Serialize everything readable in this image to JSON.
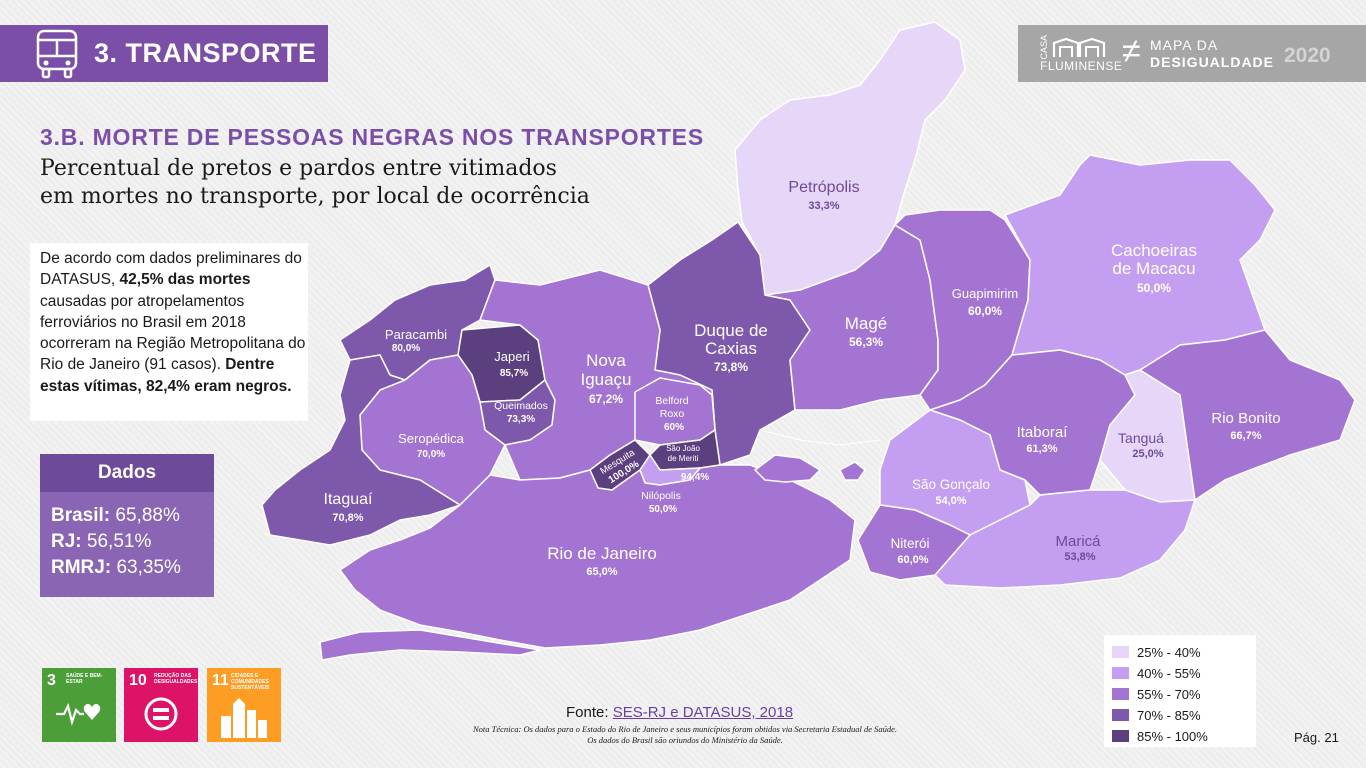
{
  "header": {
    "title": "3. TRANSPORTE",
    "icon": "bus-icon"
  },
  "brand": {
    "casa": "CASA",
    "fluminense": "FLUMINENSE",
    "symbol": "≠",
    "mapa_line1": "MAPA DA",
    "mapa_line2": "DESIGUALDADE",
    "year": "2020"
  },
  "section_title": "3.B. MORTE DE PESSOAS NEGRAS NOS TRANSPORTES",
  "subtitle_line1": "Percentual de pretos e pardos entre vitimados",
  "subtitle_line2": "em mortes no transporte, por local de ocorrência",
  "description": {
    "part1": "De acordo com dados preliminares do DATASUS, ",
    "bold1": "42,5% das mortes",
    "part2": " causadas por atropelamentos ferroviários no Brasil em 2018 ocorreram na Região Metropolitana do Rio de Janeiro (91 casos). ",
    "bold2": "Dentre estas vítimas, 82,4% eram negros."
  },
  "dados": {
    "title": "Dados",
    "rows": [
      {
        "label": "Brasil:",
        "value": "65,88%"
      },
      {
        "label": "RJ:",
        "value": "56,51%"
      },
      {
        "label": "RMRJ:",
        "value": "63,35%"
      }
    ]
  },
  "map": {
    "regions": [
      {
        "name": "Petrópolis",
        "value": "33,3%",
        "class": "25-40"
      },
      {
        "name": "Duque de Caxias",
        "value": "73,8%",
        "class": "70-85"
      },
      {
        "name": "Magé",
        "value": "56,3%",
        "class": "55-70"
      },
      {
        "name": "Guapimirim",
        "value": "60,0%",
        "class": "55-70"
      },
      {
        "name": "Cachoeiras de Macacu",
        "value": "50,0%",
        "class": "40-55"
      },
      {
        "name": "Paracambi",
        "value": "80,0%",
        "class": "70-85"
      },
      {
        "name": "Japeri",
        "value": "85,7%",
        "class": "85-100"
      },
      {
        "name": "Queimados",
        "value": "73,3%",
        "class": "70-85"
      },
      {
        "name": "Nova Iguaçu",
        "value": "67,2%",
        "class": "55-70"
      },
      {
        "name": "Belford Roxo",
        "value": "60%",
        "class": "55-70"
      },
      {
        "name": "Seropédica",
        "value": "70,0%",
        "class": "55-70"
      },
      {
        "name": "Mesquita",
        "value": "100,0%",
        "class": "85-100"
      },
      {
        "name": "São João de Meriti",
        "value": "94,4%",
        "class": "85-100"
      },
      {
        "name": "Nilópolis",
        "value": "50,0%",
        "class": "40-55"
      },
      {
        "name": "Itaguaí",
        "value": "70,8%",
        "class": "70-85"
      },
      {
        "name": "Rio de Janeiro",
        "value": "65,0%",
        "class": "55-70"
      },
      {
        "name": "Itaboraí",
        "value": "61,3%",
        "class": "55-70"
      },
      {
        "name": "Tanguá",
        "value": "25,0%",
        "class": "25-40"
      },
      {
        "name": "Rio Bonito",
        "value": "66,7%",
        "class": "55-70"
      },
      {
        "name": "São Gonçalo",
        "value": "54,0%",
        "class": "40-55"
      },
      {
        "name": "Niterói",
        "value": "60,0%",
        "class": "55-70"
      },
      {
        "name": "Maricá",
        "value": "53,8%",
        "class": "40-55"
      }
    ],
    "label_lines": {
      "duque_1": "Duque de",
      "duque_2": "Caxias",
      "cachoeiras_1": "Cachoeiras",
      "cachoeiras_2": "de Macacu",
      "nova_1": "Nova",
      "nova_2": "Iguaçu",
      "belford_1": "Belford",
      "belford_2": "Roxo",
      "meriti_1": "São João",
      "meriti_2": "de Meriti"
    }
  },
  "legend": {
    "items": [
      {
        "label": "25% - 40%",
        "color": "#e6d6f7"
      },
      {
        "label": "40% - 55%",
        "color": "#c49ef0"
      },
      {
        "label": "55% - 70%",
        "color": "#a474d2"
      },
      {
        "label": "70% - 85%",
        "color": "#7d58ab"
      },
      {
        "label": "85% - 100%",
        "color": "#5c3f7e"
      }
    ]
  },
  "sdg": [
    {
      "number": "3",
      "text": "SAÚDE E BEM-ESTAR",
      "color": "#4c9f38",
      "icon": "heartbeat-icon"
    },
    {
      "number": "10",
      "text": "REDUÇÃO DAS DESIGUALDADES",
      "color": "#dd1367",
      "icon": "equality-icon"
    },
    {
      "number": "11",
      "text": "CIDADES E COMUNIDADES SUSTENTÁVEIS",
      "color": "#fd9d24",
      "icon": "city-icon"
    }
  ],
  "footer": {
    "fonte_label": "Fonte: ",
    "fonte_link": "SES-RJ e DATASUS, 2018",
    "nota_line1": "Nota Técnica: Os dados para o Estado do Rio de Janeiro e seus municípios foram obtidos via Secretaria Estadual de Saúde.",
    "nota_line2": "Os dados do Brasil são oriundos do Ministério da Saúde.",
    "page": "Pág. 21"
  }
}
